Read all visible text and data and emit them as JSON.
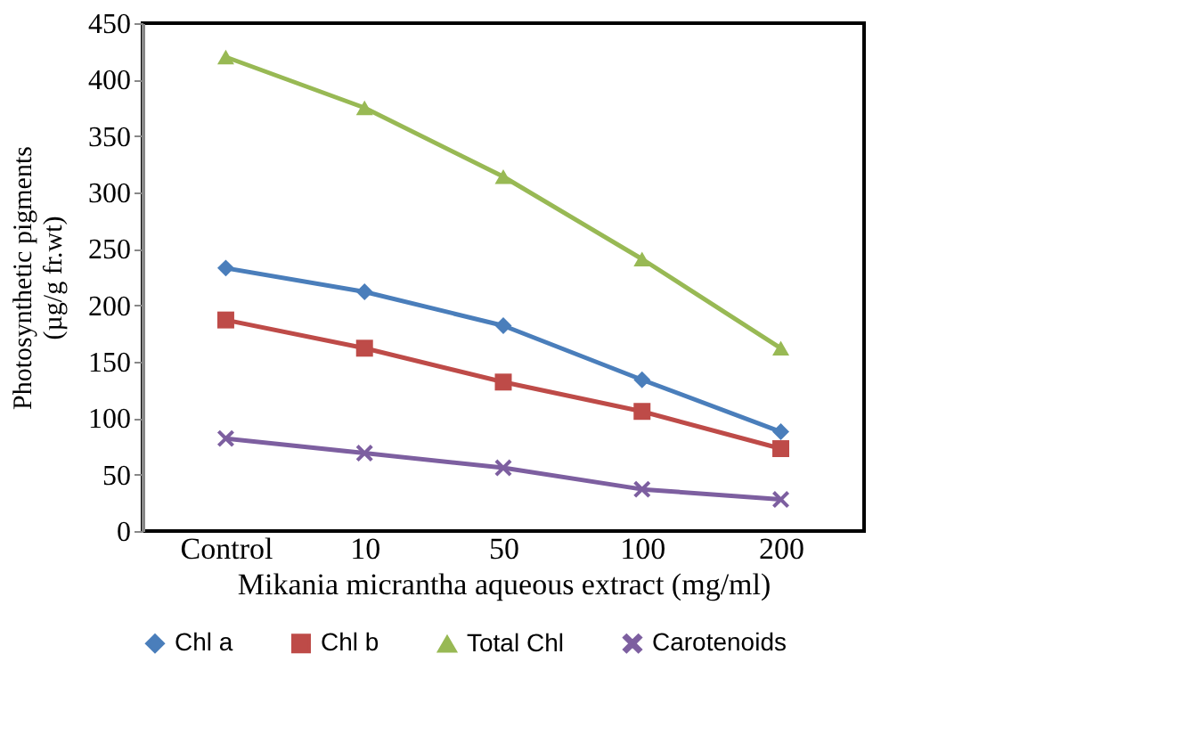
{
  "chart_data": {
    "type": "line",
    "xlabel": "Mikania micrantha aqueous extract (mg/ml)",
    "ylabel": "Photosynthetic pigments\n(µg/g fr.wt)",
    "categories": [
      "Control",
      "10",
      "50",
      "100",
      "200"
    ],
    "ylim": [
      0,
      450
    ],
    "yticks": [
      0,
      50,
      100,
      150,
      200,
      250,
      300,
      350,
      400,
      450
    ],
    "grid": false,
    "legend": "bottom",
    "series": [
      {
        "name": "Chl a",
        "color": "#4a7ebb",
        "marker": "diamond",
        "values": [
          233,
          212,
          182,
          134,
          88
        ]
      },
      {
        "name": "Chl b",
        "color": "#be4b48",
        "marker": "square",
        "values": [
          187,
          162,
          132,
          106,
          73
        ]
      },
      {
        "name": "Total Chl",
        "color": "#98b954",
        "marker": "triangle",
        "values": [
          420,
          375,
          314,
          241,
          162
        ]
      },
      {
        "name": "Carotenoids",
        "color": "#7d5fa0",
        "marker": "cross",
        "values": [
          82,
          69,
          56,
          37,
          28
        ]
      }
    ]
  }
}
